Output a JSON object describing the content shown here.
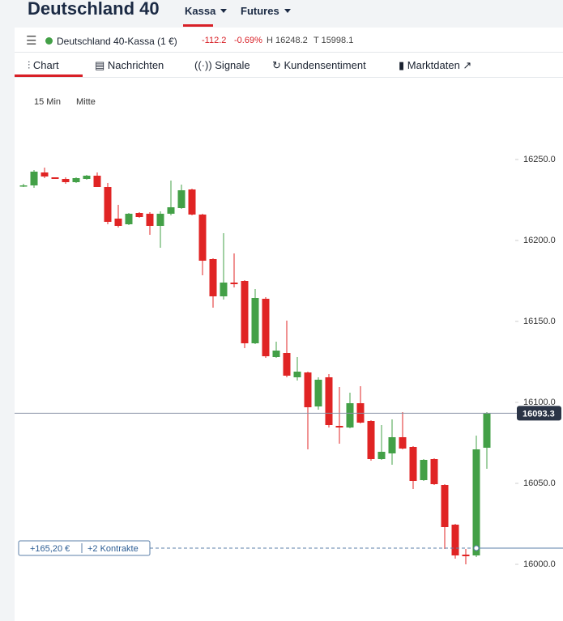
{
  "header": {
    "title": "Deutschland 40",
    "tabs": [
      "Kassa",
      "Futures"
    ]
  },
  "quote": {
    "name": "Deutschland 40-Kassa (1 €)",
    "change": "-112.2",
    "change_pct": "-0.69%",
    "high": "H 16248.2",
    "low": "T 15998.1"
  },
  "nav": [
    "Chart",
    "Nachrichten",
    "Signale",
    "Kundensentiment",
    "Marktdaten"
  ],
  "toolbar": [
    "15 Min",
    "Mitte"
  ],
  "chart_data": {
    "type": "candlestick",
    "up_color": "#43a047",
    "down_color": "#e02424",
    "ylim": [
      15965,
      16300
    ],
    "yticks": [
      {
        "value": 16000,
        "label": "16000.0"
      },
      {
        "value": 16050,
        "label": "16050.0"
      },
      {
        "value": 16100,
        "label": "16100.0"
      },
      {
        "value": 16150,
        "label": "16150.0"
      },
      {
        "value": 16200,
        "label": "16200.0"
      },
      {
        "value": 16250,
        "label": "16250.0"
      }
    ],
    "open": [
      16234,
      16234,
      16242,
      16239,
      16238,
      16236,
      16238,
      16240,
      16233,
      16213.5,
      16210,
      16217,
      16216.5,
      16209,
      16216.5,
      16220,
      16231.5,
      16216,
      16188.5,
      16165.5,
      16174,
      16175,
      16136.5,
      16164,
      16128,
      16130.5,
      16115.5,
      16118.5,
      16097.5,
      16115.5,
      16085.5,
      16084.5,
      16099.5,
      16088.5,
      16065,
      16068.5,
      16078.5,
      16072.5,
      16052,
      16065,
      16049,
      16024.5,
      16006,
      16005.5,
      16072
    ],
    "high": [
      16235,
      16243.5,
      16245,
      16239,
      16239,
      16239,
      16240.5,
      16242,
      16235.5,
      16222,
      16217,
      16217.5,
      16217.5,
      16218,
      16237,
      16234.5,
      16232,
      16216.5,
      16189,
      16204.5,
      16192,
      16175.5,
      16170,
      16165,
      16137.5,
      16150.5,
      16128,
      16119,
      16115.5,
      16117.5,
      16109.5,
      16106,
      16110,
      16089,
      16086,
      16089.5,
      16094,
      16073,
      16065,
      16065.5,
      16049.5,
      16025,
      16009.5,
      16079.5,
      16094
    ],
    "low": [
      16233,
      16232.5,
      16238.5,
      16238,
      16235,
      16235.5,
      16237.5,
      16233,
      16210,
      16208,
      16209.5,
      16214,
      16203.5,
      16195.5,
      16215.5,
      16219.5,
      16215.5,
      16178.5,
      16158.5,
      16163.5,
      16171,
      16133.5,
      16136,
      16127.5,
      16127.5,
      16115.5,
      16113.5,
      16071,
      16095.5,
      16084.5,
      16074.5,
      16084,
      16087,
      16064,
      16064.5,
      16061.5,
      16071,
      16046.5,
      16051.5,
      16049,
      16009.5,
      16003.5,
      16000,
      16004.5,
      16059
    ],
    "close": [
      16234,
      16242.5,
      16239.5,
      16238,
      16236,
      16238.5,
      16240,
      16233,
      16211.5,
      16209,
      16216.5,
      16214.5,
      16209,
      16216.5,
      16220.5,
      16231,
      16216,
      16187.5,
      16165.5,
      16174,
      16173,
      16136.5,
      16164.5,
      16128.5,
      16132,
      16116.5,
      16119,
      16097,
      16114,
      16086,
      16084.5,
      16099.5,
      16087.5,
      16065,
      16069.5,
      16078.5,
      16071.5,
      16051.5,
      16064.5,
      16049.5,
      16023,
      16005.5,
      16005,
      16071,
      16093.5
    ],
    "last_price": 16093.3,
    "position_level": 16010,
    "position_labels": [
      "+165,20 €",
      "+2 Kontrakte"
    ]
  }
}
